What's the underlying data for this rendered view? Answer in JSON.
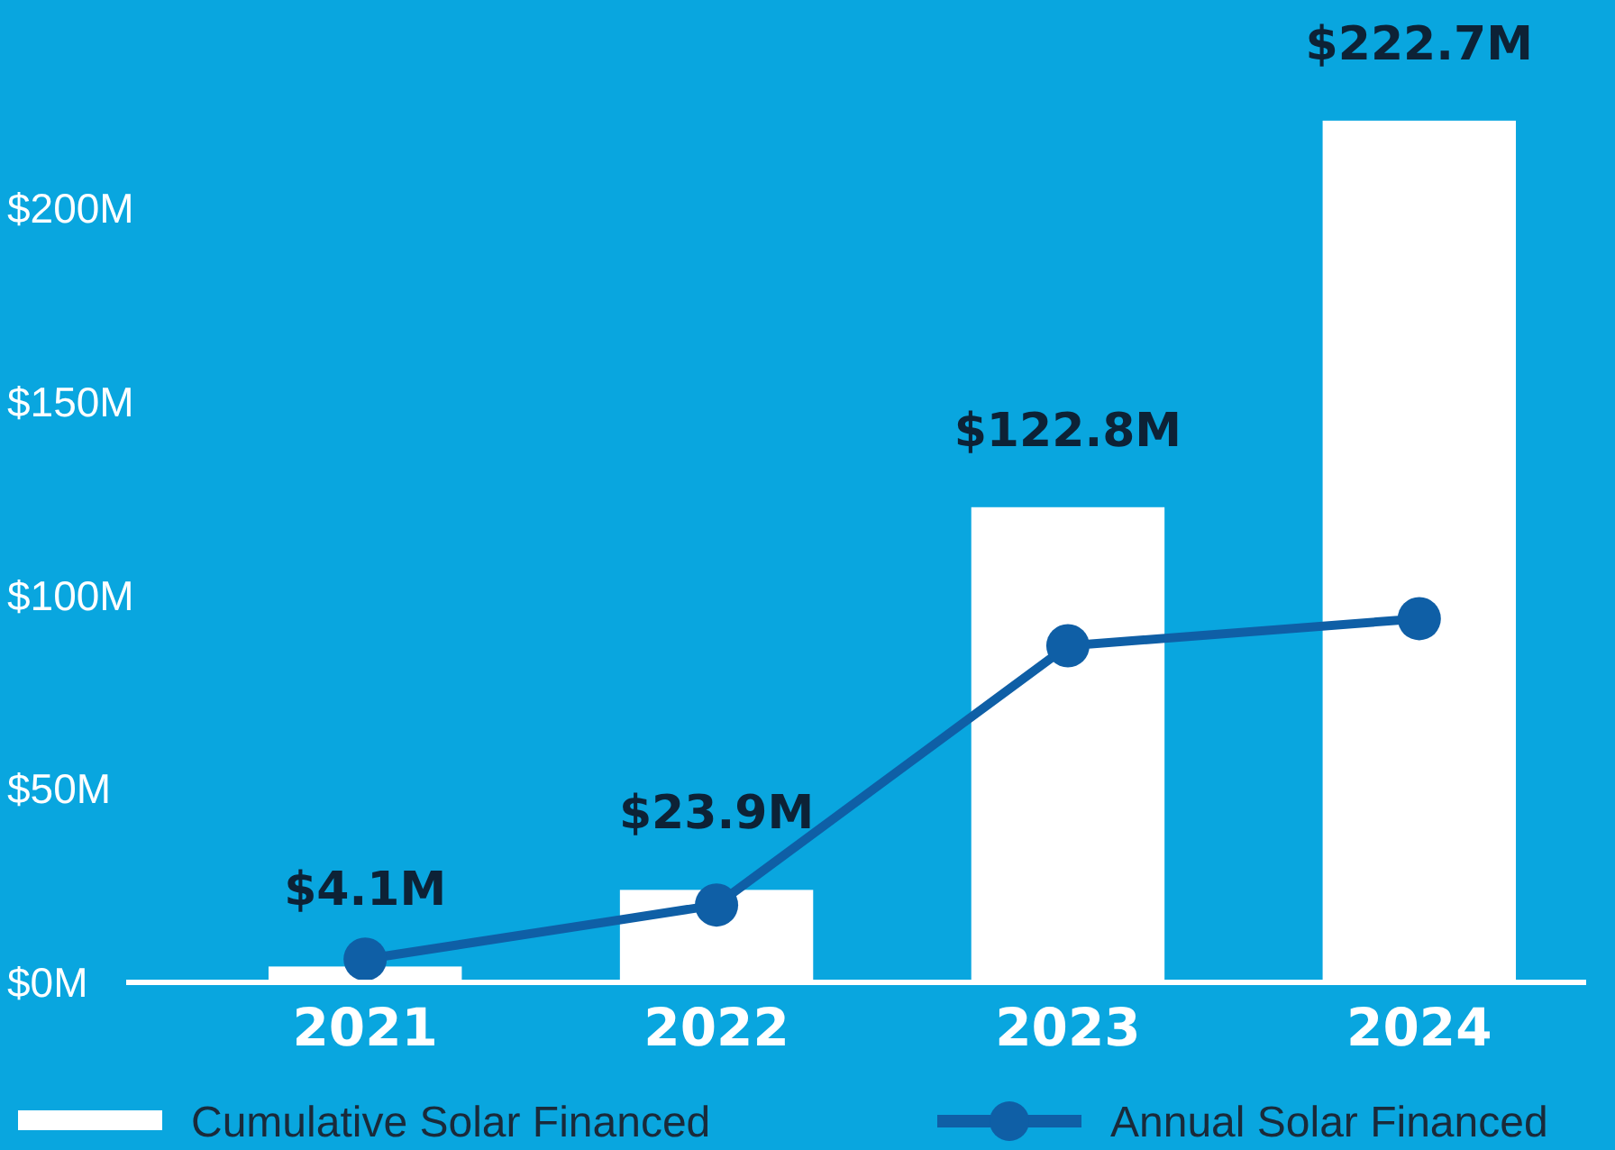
{
  "chart_data": {
    "type": "bar",
    "categories": [
      "2021",
      "2022",
      "2023",
      "2024"
    ],
    "series": [
      {
        "name": "Cumulative Solar Financed",
        "color": "#ffffff",
        "values": [
          4.1,
          23.9,
          122.8,
          222.7
        ],
        "value_labels": [
          "$4.1M",
          "$23.9M",
          "$122.8M",
          "$222.7M"
        ]
      },
      {
        "name": "Annual Solar Financed",
        "type": "line",
        "color": "#0f5fa6",
        "marker": "circle",
        "values": [
          6,
          20,
          87,
          94
        ]
      }
    ],
    "ylim": [
      0,
      225
    ],
    "yticks": [
      {
        "value": 0,
        "label": "$0M"
      },
      {
        "value": 50,
        "label": "$50M"
      },
      {
        "value": 100,
        "label": "$100M"
      },
      {
        "value": 150,
        "label": "$150M"
      },
      {
        "value": 200,
        "label": "$200M"
      }
    ],
    "grid": false,
    "legend": "bottom"
  }
}
